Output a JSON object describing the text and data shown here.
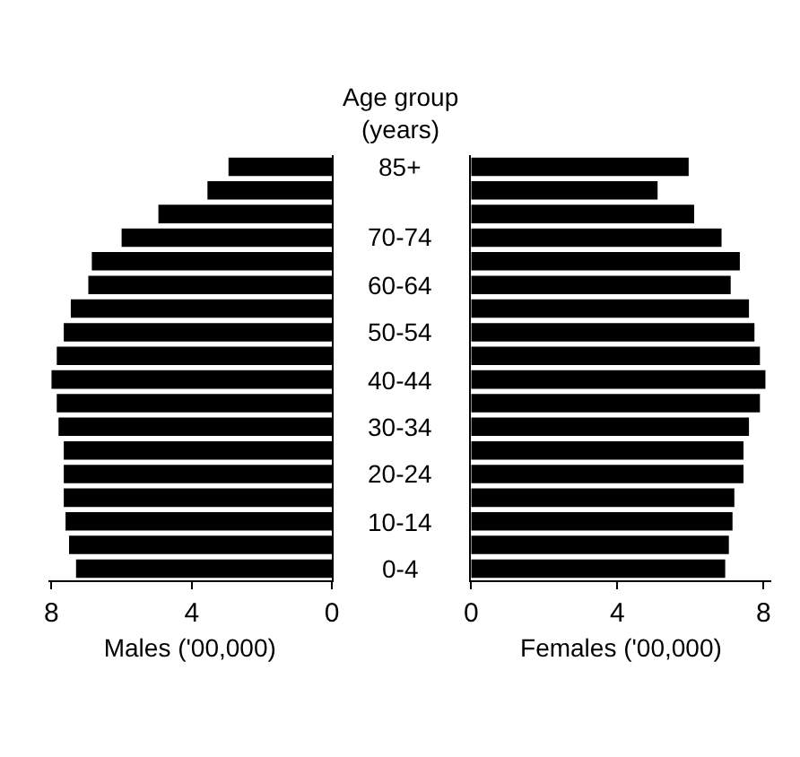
{
  "chart_data": [
    {
      "type": "bar",
      "orientation": "horizontal",
      "ylabel": "Age group\n(years)",
      "xlabel": "Males ('00,000)",
      "categories": [
        "85+",
        null,
        null,
        "70-74",
        null,
        "60-64",
        null,
        "50-54",
        null,
        "40-44",
        null,
        "30-34",
        null,
        "20-24",
        null,
        "10-14",
        null,
        "0-4"
      ],
      "values": [
        2.95,
        3.55,
        4.95,
        6.0,
        6.85,
        6.95,
        7.45,
        7.65,
        7.85,
        8.0,
        7.85,
        7.8,
        7.65,
        7.65,
        7.65,
        7.6,
        7.5,
        7.3
      ],
      "color": "#000000",
      "xlim": [
        8.1,
        0
      ],
      "xticks": [
        8,
        4,
        0
      ]
    },
    {
      "type": "bar",
      "orientation": "horizontal",
      "xlabel": "Females ('00,000)",
      "tick_labels": "x",
      "categories": [
        null,
        null,
        null,
        null,
        null,
        null,
        null,
        null,
        null,
        null,
        null,
        null,
        null,
        null,
        null,
        null,
        null,
        null
      ],
      "values": [
        5.95,
        5.1,
        6.1,
        6.85,
        7.35,
        7.1,
        7.6,
        7.75,
        7.9,
        8.05,
        7.9,
        7.6,
        7.45,
        7.45,
        7.2,
        7.15,
        7.05,
        6.95
      ],
      "color": "#000000",
      "xlim": [
        0,
        8.2
      ],
      "xticks": [
        0,
        4,
        8
      ]
    }
  ]
}
